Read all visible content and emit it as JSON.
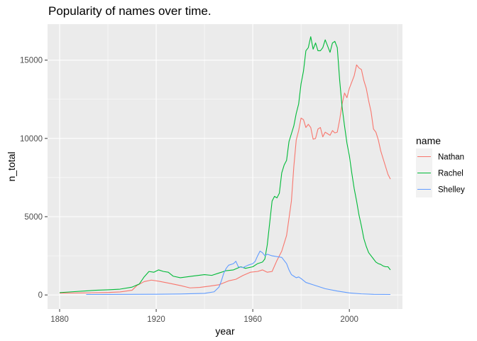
{
  "chart_data": {
    "type": "line",
    "title": "Popularity of names over time.",
    "xlabel": "year",
    "ylabel": "n_total",
    "xlim": [
      1875,
      2022
    ],
    "ylim": [
      -900,
      17300
    ],
    "x_ticks": [
      1880,
      1920,
      1960,
      2000
    ],
    "y_ticks": [
      0,
      5000,
      10000,
      15000
    ],
    "x_tick_labels": [
      "1880",
      "1920",
      "1960",
      "2000"
    ],
    "y_tick_labels": [
      "0",
      "5000",
      "10000",
      "15000"
    ],
    "grid": true,
    "panel_background": "#ebebeb",
    "legend": {
      "title": "name",
      "placement": "right"
    },
    "series": [
      {
        "name": "Nathan",
        "color": "#f8766d",
        "points": [
          [
            1880,
            120
          ],
          [
            1890,
            130
          ],
          [
            1900,
            160
          ],
          [
            1905,
            190
          ],
          [
            1910,
            300
          ],
          [
            1912,
            600
          ],
          [
            1915,
            850
          ],
          [
            1918,
            950
          ],
          [
            1921,
            880
          ],
          [
            1925,
            760
          ],
          [
            1930,
            600
          ],
          [
            1934,
            450
          ],
          [
            1938,
            480
          ],
          [
            1942,
            560
          ],
          [
            1946,
            650
          ],
          [
            1950,
            900
          ],
          [
            1953,
            1000
          ],
          [
            1956,
            1250
          ],
          [
            1959,
            1450
          ],
          [
            1962,
            1500
          ],
          [
            1964,
            1600
          ],
          [
            1966,
            1450
          ],
          [
            1968,
            1500
          ],
          [
            1970,
            2200
          ],
          [
            1972,
            2800
          ],
          [
            1974,
            3800
          ],
          [
            1976,
            6000
          ],
          [
            1977,
            8200
          ],
          [
            1978,
            9900
          ],
          [
            1979,
            10500
          ],
          [
            1980,
            11300
          ],
          [
            1981,
            11200
          ],
          [
            1982,
            10700
          ],
          [
            1983,
            10900
          ],
          [
            1984,
            10700
          ],
          [
            1985,
            9950
          ],
          [
            1986,
            10000
          ],
          [
            1987,
            10600
          ],
          [
            1988,
            10700
          ],
          [
            1989,
            10100
          ],
          [
            1990,
            10400
          ],
          [
            1991,
            10300
          ],
          [
            1992,
            10200
          ],
          [
            1993,
            10500
          ],
          [
            1994,
            10350
          ],
          [
            1995,
            10400
          ],
          [
            1996,
            11200
          ],
          [
            1997,
            12200
          ],
          [
            1998,
            12900
          ],
          [
            1999,
            12600
          ],
          [
            2000,
            13200
          ],
          [
            2001,
            13600
          ],
          [
            2002,
            14000
          ],
          [
            2003,
            14700
          ],
          [
            2004,
            14500
          ],
          [
            2005,
            14400
          ],
          [
            2006,
            13700
          ],
          [
            2007,
            13200
          ],
          [
            2008,
            12400
          ],
          [
            2009,
            11700
          ],
          [
            2010,
            10600
          ],
          [
            2011,
            10400
          ],
          [
            2012,
            9900
          ],
          [
            2013,
            9200
          ],
          [
            2014,
            8700
          ],
          [
            2015,
            8200
          ],
          [
            2016,
            7700
          ],
          [
            2017,
            7400
          ]
        ]
      },
      {
        "name": "Rachel",
        "color": "#00ba38",
        "points": [
          [
            1880,
            150
          ],
          [
            1885,
            200
          ],
          [
            1890,
            250
          ],
          [
            1895,
            300
          ],
          [
            1900,
            330
          ],
          [
            1905,
            370
          ],
          [
            1910,
            500
          ],
          [
            1913,
            700
          ],
          [
            1915,
            1150
          ],
          [
            1917,
            1500
          ],
          [
            1919,
            1450
          ],
          [
            1921,
            1600
          ],
          [
            1923,
            1500
          ],
          [
            1925,
            1450
          ],
          [
            1927,
            1200
          ],
          [
            1930,
            1100
          ],
          [
            1935,
            1200
          ],
          [
            1940,
            1300
          ],
          [
            1943,
            1250
          ],
          [
            1946,
            1400
          ],
          [
            1949,
            1550
          ],
          [
            1952,
            1600
          ],
          [
            1955,
            1800
          ],
          [
            1957,
            1700
          ],
          [
            1960,
            1800
          ],
          [
            1962,
            2000
          ],
          [
            1964,
            2100
          ],
          [
            1965,
            2300
          ],
          [
            1966,
            3200
          ],
          [
            1967,
            4600
          ],
          [
            1968,
            6000
          ],
          [
            1969,
            6300
          ],
          [
            1970,
            6200
          ],
          [
            1971,
            6500
          ],
          [
            1972,
            7800
          ],
          [
            1973,
            8300
          ],
          [
            1974,
            8600
          ],
          [
            1975,
            9800
          ],
          [
            1976,
            10300
          ],
          [
            1977,
            10800
          ],
          [
            1978,
            11600
          ],
          [
            1979,
            12200
          ],
          [
            1980,
            13500
          ],
          [
            1981,
            14300
          ],
          [
            1982,
            15600
          ],
          [
            1983,
            15800
          ],
          [
            1984,
            16500
          ],
          [
            1985,
            15700
          ],
          [
            1986,
            16100
          ],
          [
            1987,
            15600
          ],
          [
            1988,
            15600
          ],
          [
            1989,
            15800
          ],
          [
            1990,
            16300
          ],
          [
            1991,
            15900
          ],
          [
            1992,
            15500
          ],
          [
            1993,
            16100
          ],
          [
            1994,
            16200
          ],
          [
            1995,
            15800
          ],
          [
            1996,
            13700
          ],
          [
            1997,
            12000
          ],
          [
            1998,
            10800
          ],
          [
            1999,
            9700
          ],
          [
            2000,
            8900
          ],
          [
            2001,
            7800
          ],
          [
            2002,
            6800
          ],
          [
            2003,
            6000
          ],
          [
            2004,
            5100
          ],
          [
            2005,
            4400
          ],
          [
            2006,
            3600
          ],
          [
            2007,
            3100
          ],
          [
            2008,
            2700
          ],
          [
            2009,
            2500
          ],
          [
            2010,
            2300
          ],
          [
            2011,
            2100
          ],
          [
            2012,
            2000
          ],
          [
            2013,
            1950
          ],
          [
            2014,
            1850
          ],
          [
            2015,
            1800
          ],
          [
            2016,
            1800
          ],
          [
            2017,
            1600
          ]
        ]
      },
      {
        "name": "Shelley",
        "color": "#619cff",
        "points": [
          [
            1891,
            30
          ],
          [
            1900,
            35
          ],
          [
            1910,
            40
          ],
          [
            1920,
            45
          ],
          [
            1930,
            60
          ],
          [
            1940,
            100
          ],
          [
            1944,
            200
          ],
          [
            1946,
            500
          ],
          [
            1947,
            900
          ],
          [
            1948,
            1400
          ],
          [
            1949,
            1700
          ],
          [
            1950,
            1900
          ],
          [
            1952,
            2000
          ],
          [
            1953,
            2150
          ],
          [
            1954,
            1800
          ],
          [
            1956,
            1750
          ],
          [
            1958,
            1900
          ],
          [
            1960,
            2000
          ],
          [
            1961,
            2150
          ],
          [
            1962,
            2500
          ],
          [
            1963,
            2800
          ],
          [
            1964,
            2700
          ],
          [
            1965,
            2500
          ],
          [
            1966,
            2600
          ],
          [
            1968,
            2500
          ],
          [
            1970,
            2450
          ],
          [
            1972,
            2400
          ],
          [
            1973,
            2200
          ],
          [
            1974,
            2000
          ],
          [
            1975,
            1600
          ],
          [
            1976,
            1300
          ],
          [
            1977,
            1200
          ],
          [
            1978,
            1100
          ],
          [
            1979,
            1150
          ],
          [
            1980,
            1050
          ],
          [
            1982,
            800
          ],
          [
            1985,
            650
          ],
          [
            1990,
            400
          ],
          [
            1995,
            250
          ],
          [
            2000,
            130
          ],
          [
            2005,
            70
          ],
          [
            2010,
            40
          ],
          [
            2017,
            30
          ]
        ]
      }
    ]
  }
}
